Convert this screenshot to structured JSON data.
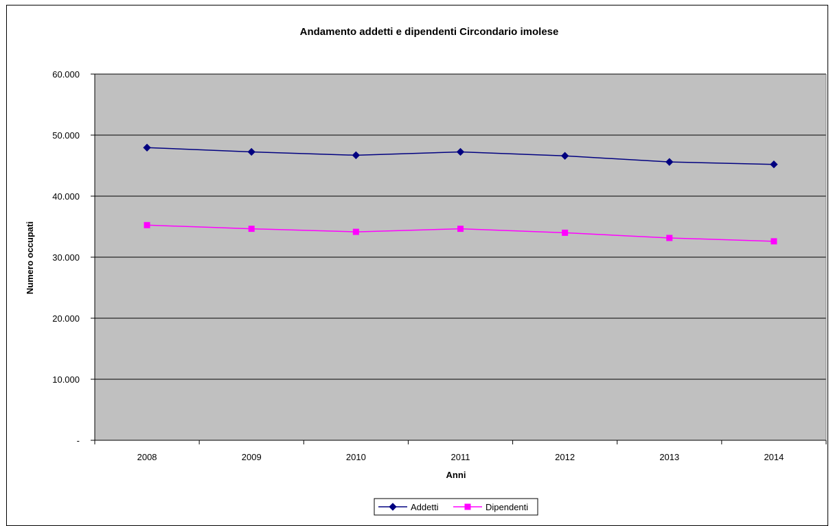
{
  "chart_data": {
    "type": "line",
    "title": "Andamento addetti e dipendenti Circondario imolese",
    "xlabel": "Anni",
    "ylabel": "Numero occupati",
    "categories": [
      "2008",
      "2009",
      "2010",
      "2011",
      "2012",
      "2013",
      "2014"
    ],
    "ylim": [
      0,
      60000
    ],
    "yticks": [
      0,
      10000,
      20000,
      30000,
      40000,
      50000,
      60000
    ],
    "ytick_labels": [
      "-",
      "10.000",
      "20.000",
      "30.000",
      "40.000",
      "50.000",
      "60.000"
    ],
    "grid": true,
    "legend_position": "bottom",
    "plot_background": "#c0c0c0",
    "series": [
      {
        "name": "Addetti",
        "values": [
          47950,
          47250,
          46700,
          47250,
          46600,
          45600,
          45200
        ],
        "color": "#000080",
        "marker": "diamond"
      },
      {
        "name": "Dipendenti",
        "values": [
          35250,
          34650,
          34150,
          34650,
          34000,
          33150,
          32600
        ],
        "color": "#ff00ff",
        "marker": "square"
      }
    ]
  }
}
